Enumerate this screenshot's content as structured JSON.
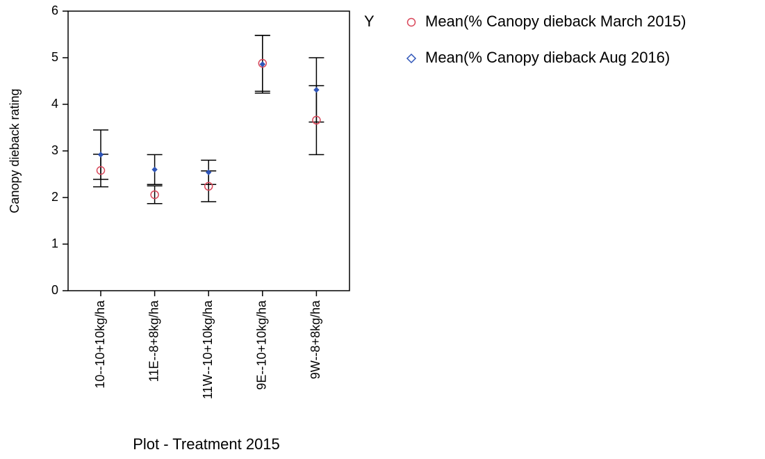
{
  "chart_data": {
    "type": "scatter",
    "x_label": "Plot - Treatment 2015",
    "y_label": "Canopy dieback rating",
    "legend_title": "Y",
    "legend_position": "right",
    "grid": false,
    "categories": [
      "10--10+10kg/ha",
      "11E--8+8kg/ha",
      "11W--10+10kg/ha",
      "9E--10+10kg/ha",
      "9W--8+8kg/ha"
    ],
    "series": [
      {
        "name": "Mean(% Canopy dieback March 2015)",
        "color": "#d9475a",
        "marker": "circle",
        "values": [
          2.58,
          2.06,
          2.24,
          4.88,
          3.66
        ],
        "errors": [
          0.35,
          0.19,
          0.33,
          0.6,
          0.74
        ]
      },
      {
        "name": "Mean(% Canopy dieback Aug 2016)",
        "color": "#2f55b8",
        "marker": "diamond",
        "values": [
          2.92,
          2.6,
          2.54,
          4.86,
          4.31
        ],
        "errors": [
          0.53,
          0.32,
          0.26,
          0.62,
          0.69
        ]
      }
    ],
    "ylim": [
      0,
      6
    ],
    "yticks": [
      0,
      1,
      2,
      3,
      4,
      5,
      6
    ]
  }
}
